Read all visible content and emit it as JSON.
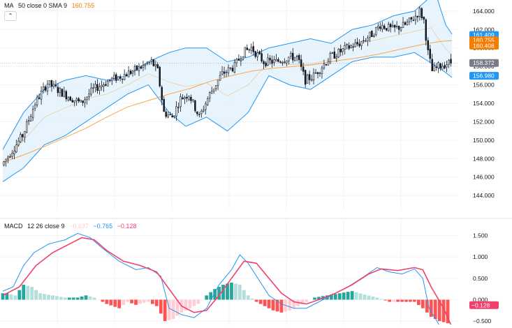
{
  "legends": {
    "main": {
      "name": "MA",
      "params": "50 close 0 SMA 9",
      "value": "160.755"
    },
    "macd": {
      "name": "MACD",
      "params": "12 26 close 9",
      "v1": "−0.637",
      "v2": "−0.765",
      "v3": "−0.128"
    }
  },
  "collapse_icon": "chevron-up-icon",
  "colors": {
    "background": "#ffffff",
    "grid": "#f0f3fa",
    "up": "#ffffff",
    "down": "#131722",
    "wick": "#131722",
    "band": "#2196f3",
    "bandFill": "#e3f2fd",
    "ma": "#f7a64c",
    "macd": "#2196f3",
    "signal": "#f23f6c",
    "histUpStrong": "#26a69a",
    "histUpWeak": "#b2dfdb",
    "histDownStrong": "#ff5252",
    "histDownWeak": "#ffcdd2",
    "tagBlue": "#2196f3",
    "tagOrange": "#f57c00",
    "tagGray": "#787b86"
  },
  "chart_data": [
    {
      "type": "candlestick",
      "title": "",
      "ylim": [
        142.5,
        165.2
      ],
      "y_ticks": [
        "144.000",
        "146.000",
        "148.000",
        "150.000",
        "152.000",
        "154.000",
        "156.000",
        "158.000",
        "160.000",
        "162.000",
        "164.000"
      ],
      "series": [
        {
          "name": "MA 50 close",
          "kind": "line",
          "points": [
            [
              0,
              147.6
            ],
            [
              10,
              148.4
            ],
            [
              20,
              149.3
            ],
            [
              30,
              150.3
            ],
            [
              40,
              151.3
            ],
            [
              50,
              152.5
            ],
            [
              60,
              153.6
            ],
            [
              70,
              154.3
            ],
            [
              80,
              155.0
            ],
            [
              90,
              155.6
            ],
            [
              100,
              156.4
            ],
            [
              110,
              157.0
            ],
            [
              120,
              157.5
            ],
            [
              130,
              157.8
            ],
            [
              140,
              158.0
            ],
            [
              150,
              158.2
            ],
            [
              160,
              158.6
            ],
            [
              170,
              158.9
            ],
            [
              180,
              159.3
            ],
            [
              190,
              159.8
            ],
            [
              200,
              160.3
            ],
            [
              210,
              160.7
            ],
            [
              216,
              160.8
            ]
          ]
        },
        {
          "name": "BB upper",
          "kind": "line",
          "points": [
            [
              0,
              149.0
            ],
            [
              10,
              153.0
            ],
            [
              20,
              155.5
            ],
            [
              30,
              156.5
            ],
            [
              40,
              157.0
            ],
            [
              50,
              156.5
            ],
            [
              60,
              157.0
            ],
            [
              70,
              158.5
            ],
            [
              80,
              159.5
            ],
            [
              88,
              160.0
            ],
            [
              98,
              160.0
            ],
            [
              108,
              158.5
            ],
            [
              118,
              159.0
            ],
            [
              128,
              160.0
            ],
            [
              138,
              160.5
            ],
            [
              148,
              161.0
            ],
            [
              158,
              160.5
            ],
            [
              168,
              162.0
            ],
            [
              178,
              162.5
            ],
            [
              188,
              163.5
            ],
            [
              198,
              164.0
            ],
            [
              208,
              166.0
            ],
            [
              213,
              162.5
            ],
            [
              216,
              161.5
            ]
          ]
        },
        {
          "name": "BB lower",
          "kind": "line",
          "points": [
            [
              0,
              145.5
            ],
            [
              10,
              147.0
            ],
            [
              20,
              149.5
            ],
            [
              30,
              150.5
            ],
            [
              40,
              152.0
            ],
            [
              50,
              153.5
            ],
            [
              60,
              155.0
            ],
            [
              70,
              156.0
            ],
            [
              80,
              153.0
            ],
            [
              88,
              151.5
            ],
            [
              98,
              152.5
            ],
            [
              108,
              151.0
            ],
            [
              118,
              153.0
            ],
            [
              128,
              157.0
            ],
            [
              138,
              156.0
            ],
            [
              148,
              155.5
            ],
            [
              158,
              157.0
            ],
            [
              168,
              158.5
            ],
            [
              178,
              159.0
            ],
            [
              188,
              159.0
            ],
            [
              198,
              159.5
            ],
            [
              205,
              158.5
            ],
            [
              212,
              157.5
            ],
            [
              216,
              156.8
            ]
          ]
        },
        {
          "name": "BB basis",
          "kind": "line",
          "points": [
            [
              0,
              147.3
            ],
            [
              10,
              150.0
            ],
            [
              20,
              152.5
            ],
            [
              30,
              153.5
            ],
            [
              40,
              154.5
            ],
            [
              50,
              155.0
            ],
            [
              60,
              156.0
            ],
            [
              70,
              157.2
            ],
            [
              80,
              156.3
            ],
            [
              88,
              155.8
            ],
            [
              98,
              156.2
            ],
            [
              108,
              154.8
            ],
            [
              118,
              156.0
            ],
            [
              128,
              158.5
            ],
            [
              138,
              158.2
            ],
            [
              148,
              158.2
            ],
            [
              158,
              158.8
            ],
            [
              168,
              160.3
            ],
            [
              178,
              160.8
            ],
            [
              188,
              161.3
            ],
            [
              198,
              161.8
            ],
            [
              206,
              162.2
            ],
            [
              212,
              160.2
            ],
            [
              216,
              159.2
            ]
          ]
        }
      ],
      "price_tags": [
        {
          "value": "161.409",
          "color": "blue"
        },
        {
          "value": "160.755",
          "color": "orange"
        },
        {
          "value": "160.408",
          "color": "orange"
        },
        {
          "value": "158.372",
          "color": "gray"
        },
        {
          "value": "156.980",
          "color": "blue"
        }
      ],
      "candle_trend": [
        [
          0,
          147.3
        ],
        [
          10,
          150.5
        ],
        [
          16,
          154.0
        ],
        [
          22,
          156.2
        ],
        [
          30,
          155.0
        ],
        [
          38,
          154.0
        ],
        [
          44,
          155.5
        ],
        [
          52,
          156.5
        ],
        [
          58,
          157.0
        ],
        [
          66,
          157.8
        ],
        [
          72,
          158.5
        ],
        [
          75,
          157.5
        ],
        [
          78,
          153.0
        ],
        [
          82,
          152.5
        ],
        [
          86,
          154.5
        ],
        [
          90,
          155.0
        ],
        [
          95,
          152.5
        ],
        [
          100,
          155.0
        ],
        [
          106,
          157.2
        ],
        [
          112,
          158.0
        ],
        [
          116,
          159.5
        ],
        [
          120,
          160.0
        ],
        [
          126,
          158.5
        ],
        [
          132,
          158.5
        ],
        [
          138,
          159.0
        ],
        [
          142,
          159.0
        ],
        [
          146,
          156.5
        ],
        [
          150,
          157.0
        ],
        [
          158,
          159.0
        ],
        [
          166,
          160.0
        ],
        [
          172,
          160.5
        ],
        [
          178,
          161.5
        ],
        [
          182,
          162.5
        ],
        [
          188,
          162.0
        ],
        [
          194,
          162.5
        ],
        [
          198,
          163.2
        ],
        [
          201,
          164.0
        ],
        [
          203,
          163.0
        ],
        [
          205,
          159.5
        ],
        [
          207,
          157.5
        ],
        [
          210,
          158.0
        ],
        [
          214,
          158.3
        ],
        [
          216,
          158.4
        ]
      ],
      "candle_count": 216
    },
    {
      "type": "macd",
      "title": "",
      "ylim": [
        -0.58,
        1.85
      ],
      "y_ticks": [
        "−0.500",
        "0.000",
        "0.500",
        "1.000",
        "1.500"
      ],
      "series": [
        {
          "name": "MACD",
          "kind": "line",
          "points": [
            [
              0,
              0.2
            ],
            [
              5,
              0.3
            ],
            [
              10,
              0.8
            ],
            [
              15,
              1.1
            ],
            [
              22,
              1.3
            ],
            [
              30,
              1.4
            ],
            [
              36,
              1.55
            ],
            [
              42,
              1.45
            ],
            [
              48,
              1.2
            ],
            [
              56,
              0.9
            ],
            [
              64,
              0.7
            ],
            [
              70,
              0.75
            ],
            [
              76,
              0.55
            ],
            [
              80,
              -0.2
            ],
            [
              86,
              -0.35
            ],
            [
              92,
              -0.42
            ],
            [
              98,
              -0.2
            ],
            [
              104,
              0.35
            ],
            [
              110,
              0.7
            ],
            [
              114,
              1.05
            ],
            [
              118,
              0.85
            ],
            [
              122,
              0.55
            ],
            [
              128,
              0.1
            ],
            [
              134,
              -0.1
            ],
            [
              140,
              -0.2
            ],
            [
              146,
              -0.2
            ],
            [
              152,
              -0.05
            ],
            [
              158,
              0.1
            ],
            [
              166,
              0.3
            ],
            [
              174,
              0.55
            ],
            [
              180,
              0.75
            ],
            [
              186,
              0.65
            ],
            [
              192,
              0.6
            ],
            [
              198,
              0.72
            ],
            [
              202,
              0.5
            ],
            [
              205,
              -0.2
            ],
            [
              210,
              -0.6
            ],
            [
              216,
              -0.77
            ]
          ]
        },
        {
          "name": "Signal",
          "kind": "line",
          "points": [
            [
              0,
              0.1
            ],
            [
              8,
              0.3
            ],
            [
              16,
              0.8
            ],
            [
              24,
              1.1
            ],
            [
              32,
              1.3
            ],
            [
              38,
              1.45
            ],
            [
              44,
              1.4
            ],
            [
              50,
              1.15
            ],
            [
              58,
              0.9
            ],
            [
              66,
              0.8
            ],
            [
              74,
              0.65
            ],
            [
              80,
              0.25
            ],
            [
              86,
              -0.15
            ],
            [
              92,
              -0.3
            ],
            [
              98,
              -0.25
            ],
            [
              104,
              0.1
            ],
            [
              110,
              0.5
            ],
            [
              116,
              0.9
            ],
            [
              122,
              0.85
            ],
            [
              128,
              0.5
            ],
            [
              134,
              0.15
            ],
            [
              140,
              -0.05
            ],
            [
              146,
              -0.1
            ],
            [
              152,
              0.0
            ],
            [
              160,
              0.15
            ],
            [
              168,
              0.35
            ],
            [
              176,
              0.6
            ],
            [
              182,
              0.72
            ],
            [
              190,
              0.68
            ],
            [
              198,
              0.75
            ],
            [
              202,
              0.7
            ],
            [
              206,
              0.3
            ],
            [
              212,
              -0.2
            ],
            [
              216,
              -0.64
            ]
          ]
        },
        {
          "name": "Histogram",
          "kind": "bars",
          "points": [
            [
              2,
              0.15
            ],
            [
              6,
              0.1
            ],
            [
              10,
              0.35
            ],
            [
              14,
              0.3
            ],
            [
              18,
              0.15
            ],
            [
              24,
              0.1
            ],
            [
              30,
              0.05
            ],
            [
              36,
              0.05
            ],
            [
              40,
              0.1
            ],
            [
              44,
              0.05
            ],
            [
              50,
              -0.1
            ],
            [
              56,
              -0.2
            ],
            [
              60,
              -0.05
            ],
            [
              64,
              -0.12
            ],
            [
              70,
              -0.05
            ],
            [
              74,
              -0.15
            ],
            [
              78,
              -0.5
            ],
            [
              82,
              -0.45
            ],
            [
              86,
              -0.3
            ],
            [
              90,
              -0.2
            ],
            [
              94,
              -0.1
            ],
            [
              98,
              0.1
            ],
            [
              102,
              0.25
            ],
            [
              106,
              0.35
            ],
            [
              110,
              0.4
            ],
            [
              114,
              0.35
            ],
            [
              118,
              0.1
            ],
            [
              122,
              -0.05
            ],
            [
              126,
              -0.15
            ],
            [
              130,
              -0.25
            ],
            [
              134,
              -0.3
            ],
            [
              138,
              -0.25
            ],
            [
              142,
              -0.15
            ],
            [
              146,
              -0.05
            ],
            [
              150,
              0.05
            ],
            [
              156,
              0.1
            ],
            [
              162,
              0.15
            ],
            [
              168,
              0.2
            ],
            [
              174,
              0.12
            ],
            [
              180,
              0.05
            ],
            [
              186,
              -0.05
            ],
            [
              192,
              -0.05
            ],
            [
              198,
              -0.05
            ],
            [
              202,
              -0.2
            ],
            [
              206,
              -0.4
            ],
            [
              210,
              -0.5
            ],
            [
              214,
              -0.55
            ]
          ]
        }
      ],
      "price_tags": [
        {
          "value": "−0.128",
          "color": "red"
        }
      ]
    }
  ]
}
